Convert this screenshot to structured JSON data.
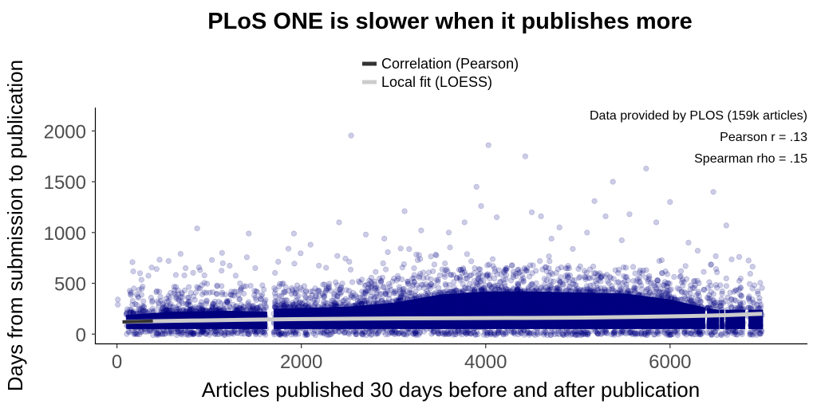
{
  "chart_data": {
    "type": "scatter",
    "title": "PLoS ONE is slower when it publishes more",
    "xlabel": "Articles published 30 days before and after publication",
    "ylabel": "Days from submission to publication",
    "xlim": [
      -230,
      7490
    ],
    "ylim": [
      -100,
      2230
    ],
    "x_ticks": [
      0,
      2000,
      4000,
      6000
    ],
    "y_ticks": [
      0,
      500,
      1000,
      1500,
      2000
    ],
    "grid": false,
    "legend_position": "top",
    "legend": [
      {
        "label": "Correlation (Pearson)",
        "color": "#333333"
      },
      {
        "label": "Local fit (LOESS)",
        "color": "#cccccc"
      }
    ],
    "annotations": [
      "Data provided by PLOS (159k articles)",
      "Pearson r = .13",
      "Spearman rho = .15"
    ],
    "point_color": "#000080",
    "point_opacity": 0.2,
    "density_profile": {
      "x_ranges": [
        [
          100,
          1620
        ],
        [
          1700,
          6370
        ],
        [
          6400,
          6520
        ],
        [
          6540,
          6580
        ],
        [
          6600,
          6800
        ],
        [
          6850,
          7000
        ]
      ],
      "core_upper_days": [
        [
          100,
          210
        ],
        [
          600,
          240
        ],
        [
          1200,
          250
        ],
        [
          1620,
          240
        ],
        [
          1700,
          270
        ],
        [
          2500,
          290
        ],
        [
          3000,
          330
        ],
        [
          3500,
          410
        ],
        [
          4000,
          440
        ],
        [
          4500,
          440
        ],
        [
          5000,
          430
        ],
        [
          5500,
          420
        ],
        [
          6000,
          360
        ],
        [
          6370,
          280
        ],
        [
          6500,
          260
        ],
        [
          7000,
          260
        ]
      ],
      "core_lower_days": 30
    },
    "outliers": [
      {
        "x": 2540,
        "y": 1955
      },
      {
        "x": 4030,
        "y": 1860
      },
      {
        "x": 4430,
        "y": 1750
      },
      {
        "x": 5740,
        "y": 1630
      },
      {
        "x": 5380,
        "y": 1500
      },
      {
        "x": 6470,
        "y": 1400
      },
      {
        "x": 5180,
        "y": 1310
      },
      {
        "x": 6000,
        "y": 1300
      },
      {
        "x": 3900,
        "y": 1450
      },
      {
        "x": 3950,
        "y": 1260
      },
      {
        "x": 3120,
        "y": 1210
      },
      {
        "x": 4500,
        "y": 1200
      },
      {
        "x": 5560,
        "y": 1180
      },
      {
        "x": 2410,
        "y": 1100
      },
      {
        "x": 4120,
        "y": 1150
      },
      {
        "x": 870,
        "y": 1040
      },
      {
        "x": 1430,
        "y": 990
      },
      {
        "x": 1920,
        "y": 990
      },
      {
        "x": 6610,
        "y": 1070
      },
      {
        "x": 5850,
        "y": 1100
      },
      {
        "x": 3770,
        "y": 1100
      },
      {
        "x": 4800,
        "y": 1050
      },
      {
        "x": 5100,
        "y": 1000
      },
      {
        "x": 3300,
        "y": 1020
      },
      {
        "x": 2700,
        "y": 980
      },
      {
        "x": 3600,
        "y": 1000
      },
      {
        "x": 690,
        "y": 790
      },
      {
        "x": 1140,
        "y": 800
      },
      {
        "x": 1500,
        "y": 650
      },
      {
        "x": 560,
        "y": 720
      },
      {
        "x": 430,
        "y": 640
      },
      {
        "x": 250,
        "y": 600
      },
      {
        "x": 1030,
        "y": 730
      },
      {
        "x": 6200,
        "y": 900
      },
      {
        "x": 6750,
        "y": 760
      },
      {
        "x": 6300,
        "y": 820
      },
      {
        "x": 6950,
        "y": 420
      },
      {
        "x": 2100,
        "y": 880
      },
      {
        "x": 2900,
        "y": 940
      },
      {
        "x": 4600,
        "y": 1160
      },
      {
        "x": 5300,
        "y": 1160
      },
      {
        "x": 6500,
        "y": 640
      },
      {
        "x": 10,
        "y": 340
      },
      {
        "x": 10,
        "y": 290
      },
      {
        "x": 1860,
        "y": 840
      }
    ],
    "pearson_fit": [
      [
        60,
        120
      ],
      [
        390,
        130
      ]
    ],
    "loess_fit": [
      [
        60,
        120
      ],
      [
        300,
        125
      ],
      [
        800,
        133
      ],
      [
        1400,
        141
      ],
      [
        2000,
        148
      ],
      [
        2600,
        152
      ],
      [
        3200,
        155
      ],
      [
        3800,
        157
      ],
      [
        4400,
        159
      ],
      [
        5000,
        162
      ],
      [
        5600,
        168
      ],
      [
        6200,
        178
      ],
      [
        6600,
        186
      ],
      [
        7000,
        200
      ]
    ]
  }
}
